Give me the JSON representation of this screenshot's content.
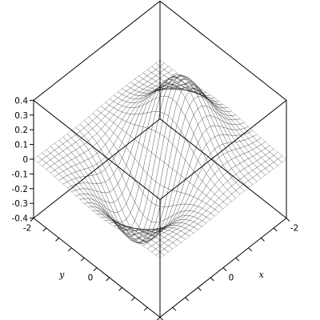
{
  "chart_data": {
    "type": "surface3d",
    "function_shape": "z = x * exp(-(x^2 + y^2))",
    "title": "",
    "xlabel": "x",
    "ylabel": "y",
    "zlabel": "",
    "xlim": [
      -2,
      2
    ],
    "ylim": [
      -2,
      2
    ],
    "zlim": [
      -0.4,
      0.4
    ],
    "z_ticks": [
      "0.4",
      "0.3",
      "0.2",
      "0.1",
      "0",
      "-0.1",
      "-0.2",
      "-0.3",
      "-0.4"
    ],
    "x_tick_labels": [
      "-2",
      "0"
    ],
    "y_tick_labels": [
      "-2",
      "0"
    ],
    "grid_resolution": 30,
    "colors": {
      "low": "#9b30ff",
      "mid_dark": "#2a0f1a",
      "high": "#f5c060",
      "flat": "#d8a0ff",
      "box": "#000000"
    }
  }
}
